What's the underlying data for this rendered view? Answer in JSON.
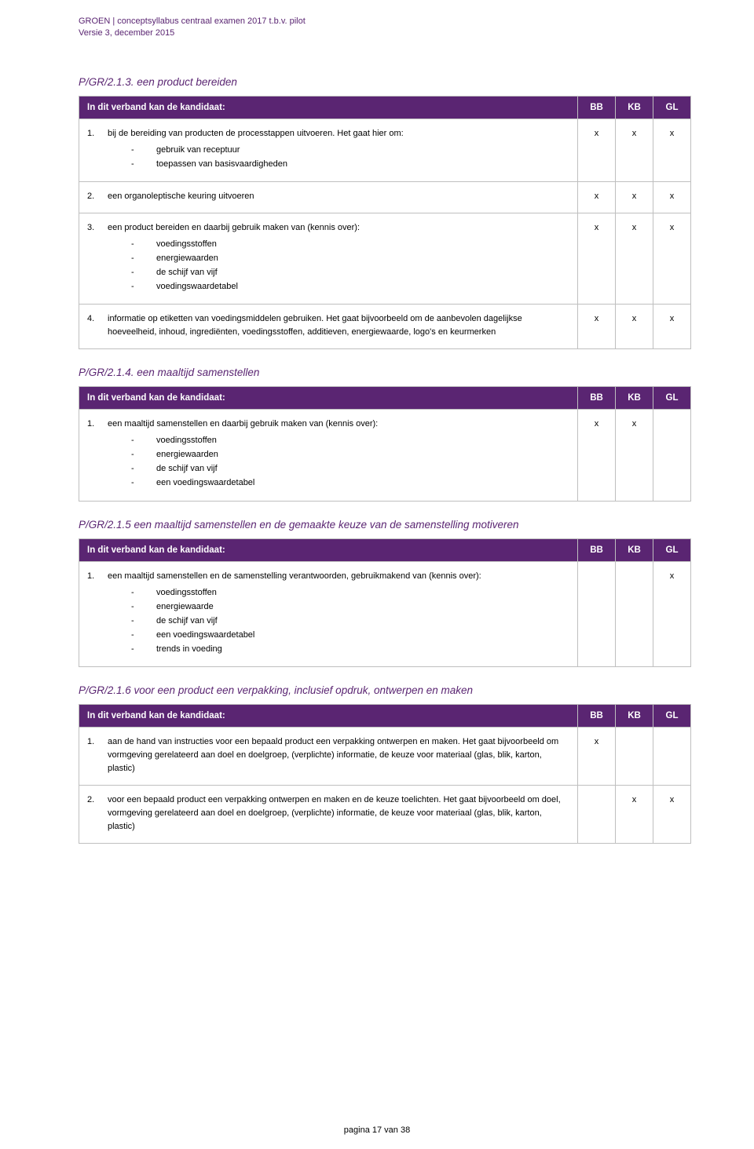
{
  "meta": {
    "header_line1": "GROEN | conceptsyllabus centraal examen 2017 t.b.v. pilot",
    "header_line2": "Versie 3, december 2015",
    "footer": "pagina 17 van 38"
  },
  "colors": {
    "accent_purple": "#5a2572",
    "border_grey": "#bfbfbf",
    "text_black": "#000000",
    "bg_white": "#ffffff"
  },
  "columns": {
    "desc": "In dit verband kan de kandidaat:",
    "BB": "BB",
    "KB": "KB",
    "GL": "GL"
  },
  "sections": [
    {
      "code": "P/GR/2.1.3. een product bereiden",
      "rows": [
        {
          "n": "1.",
          "text": "bij de bereiding van producten de processtappen uitvoeren. Het gaat hier om:",
          "bullets": [
            "gebruik van receptuur",
            "toepassen van basisvaardigheden"
          ],
          "bb": "x",
          "kb": "x",
          "gl": "x"
        },
        {
          "n": "2.",
          "text": "een organoleptische keuring uitvoeren",
          "bullets": [],
          "bb": "x",
          "kb": "x",
          "gl": "x"
        },
        {
          "n": "3.",
          "text": "een product bereiden en daarbij gebruik maken van (kennis over):",
          "bullets": [
            "voedingsstoffen",
            "energiewaarden",
            "de schijf van vijf",
            "voedingswaardetabel"
          ],
          "bb": "x",
          "kb": "x",
          "gl": "x"
        },
        {
          "n": "4.",
          "text": "informatie op etiketten van voedingsmiddelen gebruiken. Het gaat bijvoorbeeld om de aanbevolen dagelijkse hoeveelheid, inhoud, ingrediënten, voedingsstoffen, additieven, energiewaarde, logo's en keurmerken",
          "bullets": [],
          "bb": "x",
          "kb": "x",
          "gl": "x"
        }
      ]
    },
    {
      "code": "P/GR/2.1.4. een maaltijd samenstellen",
      "rows": [
        {
          "n": "1.",
          "text": "een maaltijd samenstellen en daarbij gebruik maken van (kennis over):",
          "bullets": [
            "voedingsstoffen",
            "energiewaarden",
            "de schijf van vijf",
            "een voedingswaardetabel"
          ],
          "bb": "x",
          "kb": "x",
          "gl": ""
        }
      ]
    },
    {
      "code": "P/GR/2.1.5  een maaltijd samenstellen en de gemaakte keuze van de samenstelling motiveren",
      "rows": [
        {
          "n": "1.",
          "text": "een maaltijd samenstellen en de samenstelling verantwoorden, gebruikmakend van (kennis over):",
          "bullets": [
            "voedingsstoffen",
            "energiewaarde",
            "de schijf van vijf",
            "een voedingswaardetabel",
            "trends in voeding"
          ],
          "bb": "",
          "kb": "",
          "gl": "x"
        }
      ]
    },
    {
      "code": "P/GR/2.1.6  voor een product een verpakking, inclusief opdruk, ontwerpen en maken",
      "rows": [
        {
          "n": "1.",
          "text": "aan de hand van instructies voor een bepaald product een verpakking ontwerpen en maken. Het gaat bijvoorbeeld om vormgeving gerelateerd aan doel en doelgroep, (verplichte) informatie, de keuze voor materiaal (glas, blik, karton, plastic)",
          "bullets": [],
          "bb": "x",
          "kb": "",
          "gl": ""
        },
        {
          "n": "2.",
          "text": "voor een bepaald product een verpakking ontwerpen en maken en de keuze toelichten. Het gaat bijvoorbeeld om doel, vormgeving gerelateerd aan doel en doelgroep, (verplichte) informatie, de keuze voor materiaal (glas, blik, karton, plastic)",
          "bullets": [],
          "bb": "",
          "kb": "x",
          "gl": "x"
        }
      ]
    }
  ]
}
